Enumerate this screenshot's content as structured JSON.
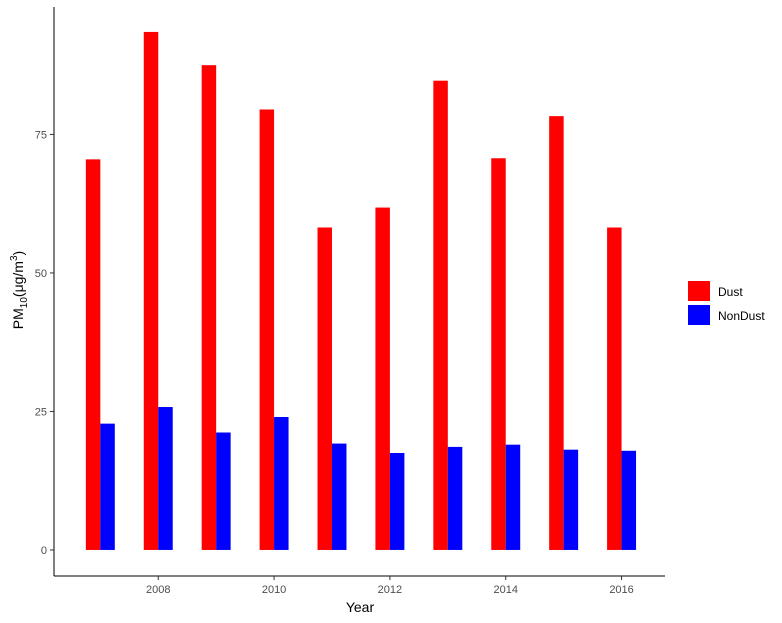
{
  "chart_data": {
    "type": "bar",
    "title": "",
    "xlabel": "Year",
    "ylabel": {
      "main": "PM",
      "sub": "10",
      "unit_pre": "(μg/m",
      "unit_sup": "3",
      "unit_post": ")"
    },
    "x": [
      2007,
      2008,
      2009,
      2010,
      2011,
      2012,
      2013,
      2014,
      2015,
      2016
    ],
    "xticks": [
      "2008",
      "2010",
      "2012",
      "2014",
      "2016"
    ],
    "yticks": [
      "0",
      "25",
      "50",
      "75"
    ],
    "xlim": [
      2006.2,
      2016.75
    ],
    "ylim": [
      -4.7,
      98
    ],
    "series": [
      {
        "name": "Dust",
        "color": "#ff0000",
        "values": [
          70.5,
          93.5,
          87.5,
          79.5,
          58.2,
          61.8,
          84.7,
          70.7,
          78.3,
          58.2
        ]
      },
      {
        "name": "NonDust",
        "color": "#0000ff",
        "values": [
          22.8,
          25.8,
          21.2,
          24.0,
          19.2,
          17.5,
          18.6,
          19.0,
          18.1,
          17.9
        ]
      }
    ],
    "grid": false,
    "legend_position": "right"
  }
}
